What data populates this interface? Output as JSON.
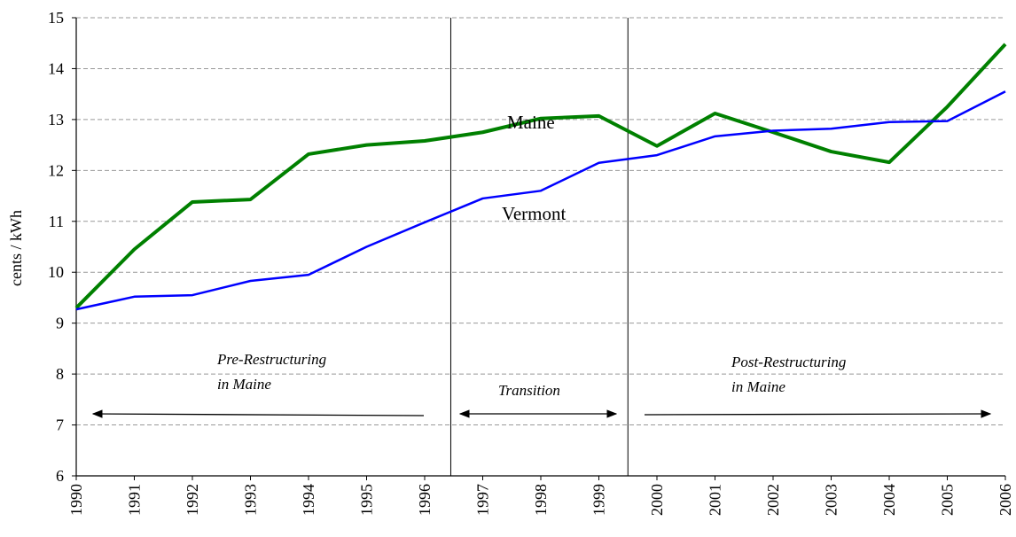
{
  "chart_data": {
    "type": "line",
    "y_label": "cents / kWh",
    "x": [
      1990,
      1991,
      1992,
      1993,
      1994,
      1995,
      1996,
      1997,
      1998,
      1999,
      2000,
      2001,
      2002,
      2003,
      2004,
      2005,
      2006
    ],
    "xlim": [
      1990,
      2006
    ],
    "xticks": [
      1990,
      1991,
      1992,
      1993,
      1994,
      1995,
      1996,
      1997,
      1998,
      1999,
      2000,
      2001,
      2002,
      2003,
      2004,
      2005,
      2006
    ],
    "ylim": [
      6,
      15
    ],
    "yticks": [
      6,
      7,
      8,
      9,
      10,
      11,
      12,
      13,
      14,
      15
    ],
    "grid": true,
    "vlines": [
      1996.45,
      1999.5
    ],
    "series": [
      {
        "name": "Maine",
        "color": "#008000",
        "width": 4,
        "values": [
          9.3,
          10.45,
          11.38,
          11.43,
          12.32,
          12.5,
          12.58,
          12.75,
          13.02,
          13.07,
          12.48,
          13.12,
          12.75,
          12.37,
          12.16,
          13.25,
          14.48
        ]
      },
      {
        "name": "Vermont",
        "color": "#0000ff",
        "width": 2.5,
        "values": [
          9.27,
          9.52,
          9.55,
          9.83,
          9.95,
          10.5,
          10.98,
          11.45,
          11.6,
          12.15,
          12.3,
          12.67,
          12.78,
          12.82,
          12.95,
          12.97,
          13.55
        ]
      }
    ],
    "annotations": [
      "Pre-Restructuring",
      "in Maine",
      "Transition",
      "Post-Restructuring",
      "in Maine"
    ]
  }
}
